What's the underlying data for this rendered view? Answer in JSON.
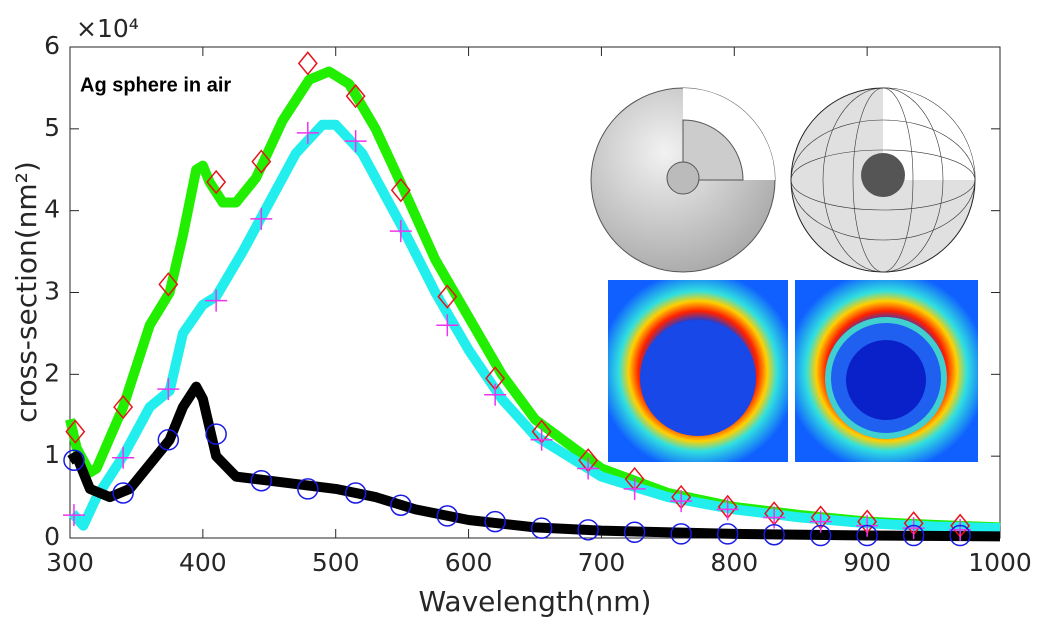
{
  "chart_data": {
    "type": "line",
    "annotation": "Ag sphere in air",
    "xlabel": "Wavelength(nm)",
    "ylabel": "cross-section(nm²)",
    "y_multiplier": "×10⁴",
    "xlim": [
      300,
      1000
    ],
    "ylim": [
      0,
      6
    ],
    "xticks": [
      300,
      400,
      500,
      600,
      700,
      800,
      900,
      1000
    ],
    "yticks": [
      0,
      1,
      2,
      3,
      4,
      5,
      6
    ],
    "series": [
      {
        "color": "#22ee00",
        "style": "line",
        "x": [
          300,
          305,
          315,
          320,
          340,
          360,
          375,
          385,
          395,
          400,
          405,
          415,
          425,
          440,
          460,
          480,
          495,
          510,
          530,
          550,
          575,
          600,
          625,
          650,
          700,
          750,
          800,
          850,
          900,
          950,
          1000
        ],
        "values": [
          1.45,
          1.1,
          0.8,
          0.85,
          1.6,
          2.6,
          3.0,
          3.7,
          4.5,
          4.55,
          4.35,
          4.1,
          4.1,
          4.4,
          5.1,
          5.6,
          5.7,
          5.55,
          5.0,
          4.3,
          3.4,
          2.7,
          2.0,
          1.45,
          0.85,
          0.55,
          0.38,
          0.28,
          0.2,
          0.16,
          0.13
        ]
      },
      {
        "color": "#22eeee",
        "style": "line",
        "x": [
          302,
          310,
          320,
          340,
          360,
          375,
          385,
          400,
          410,
          430,
          450,
          470,
          490,
          500,
          520,
          550,
          575,
          600,
          625,
          650,
          700,
          750,
          800,
          850,
          900,
          950,
          1000
        ],
        "values": [
          0.3,
          0.15,
          0.5,
          1.0,
          1.6,
          1.8,
          2.5,
          2.85,
          2.95,
          3.5,
          4.1,
          4.7,
          5.05,
          5.05,
          4.7,
          3.8,
          3.0,
          2.3,
          1.7,
          1.25,
          0.75,
          0.5,
          0.35,
          0.25,
          0.18,
          0.14,
          0.12
        ]
      },
      {
        "color": "#000000",
        "style": "line",
        "x": [
          300,
          305,
          315,
          330,
          345,
          360,
          375,
          385,
          395,
          400,
          410,
          425,
          450,
          500,
          530,
          560,
          600,
          650,
          700,
          800,
          900,
          1000
        ],
        "values": [
          0.95,
          1.0,
          0.6,
          0.5,
          0.6,
          0.9,
          1.2,
          1.6,
          1.85,
          1.7,
          1.0,
          0.75,
          0.7,
          0.6,
          0.5,
          0.35,
          0.22,
          0.13,
          0.09,
          0.05,
          0.03,
          0.02
        ]
      },
      {
        "color": "#e8141a",
        "style": "diamond",
        "x": [
          304,
          340,
          374,
          410,
          444,
          479,
          515,
          549,
          584,
          620,
          655,
          690,
          725,
          760,
          795,
          830,
          865,
          900,
          935,
          970
        ],
        "values": [
          1.3,
          1.6,
          3.1,
          4.35,
          4.6,
          5.8,
          5.4,
          4.25,
          2.95,
          1.95,
          1.3,
          0.95,
          0.72,
          0.5,
          0.38,
          0.3,
          0.25,
          0.2,
          0.18,
          0.15
        ]
      },
      {
        "color": "#ee33ee",
        "style": "plus",
        "x": [
          303,
          340,
          374,
          410,
          444,
          479,
          515,
          549,
          584,
          620,
          655,
          690,
          725,
          760,
          795,
          830,
          865,
          900,
          935,
          970
        ],
        "values": [
          0.28,
          0.98,
          1.82,
          2.9,
          3.9,
          4.95,
          4.85,
          3.75,
          2.6,
          1.75,
          1.2,
          0.85,
          0.6,
          0.45,
          0.35,
          0.25,
          0.2,
          0.15,
          0.12,
          0.1
        ]
      },
      {
        "color": "#1a1ae6",
        "style": "circle",
        "x": [
          303,
          340,
          374,
          410,
          444,
          479,
          515,
          549,
          584,
          620,
          655,
          690,
          725,
          760,
          795,
          830,
          865,
          900,
          935,
          970
        ],
        "values": [
          0.95,
          0.55,
          1.2,
          1.27,
          0.7,
          0.6,
          0.55,
          0.4,
          0.27,
          0.2,
          0.12,
          0.1,
          0.07,
          0.05,
          0.05,
          0.04,
          0.03,
          0.03,
          0.03,
          0.03
        ]
      }
    ]
  }
}
